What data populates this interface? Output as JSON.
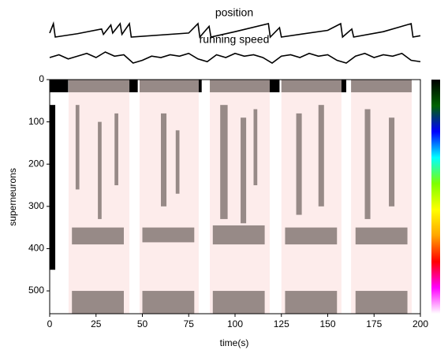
{
  "chart_data": [
    {
      "type": "line",
      "title": "position",
      "color": "#000000",
      "x": [
        0,
        2,
        3,
        15,
        28,
        29,
        33,
        34,
        38,
        39,
        43,
        44,
        75,
        80,
        81,
        86,
        87,
        100,
        118,
        119,
        124,
        125,
        150,
        157,
        158,
        163,
        164,
        180,
        195,
        196,
        200
      ],
      "values": [
        0.3,
        1,
        0,
        0.25,
        0.6,
        0.2,
        0.9,
        0.3,
        1,
        0.2,
        1,
        0,
        0.3,
        1,
        0,
        0.8,
        0,
        0.4,
        1,
        0,
        0.7,
        0,
        0.5,
        1,
        0,
        0.6,
        0,
        0.4,
        1,
        0,
        0.1
      ]
    },
    {
      "type": "line",
      "title": "running speed",
      "color": "#000000",
      "x": [
        0,
        5,
        10,
        15,
        20,
        25,
        30,
        35,
        40,
        45,
        50,
        55,
        60,
        65,
        70,
        75,
        80,
        85,
        90,
        95,
        100,
        105,
        110,
        115,
        120,
        125,
        130,
        135,
        140,
        145,
        150,
        155,
        160,
        165,
        170,
        175,
        180,
        185,
        190,
        195,
        200
      ],
      "values": [
        0.5,
        0.7,
        0.4,
        0.6,
        0.8,
        0.5,
        0.9,
        0.6,
        0.7,
        0.1,
        0.3,
        0.6,
        0.5,
        0.7,
        0.6,
        0.8,
        0.4,
        0.2,
        0.7,
        0.5,
        0.8,
        0.6,
        0.7,
        0.5,
        0.1,
        0.6,
        0.7,
        0.5,
        0.8,
        0.6,
        0.7,
        0.3,
        0.1,
        0.6,
        0.8,
        0.5,
        0.7,
        0.6,
        0.8,
        0.3,
        0.2
      ]
    },
    {
      "type": "heatmap",
      "xlabel": "time(s)",
      "ylabel": "superneurons",
      "xlim": [
        0,
        200
      ],
      "ylim": [
        0,
        554
      ],
      "invert_y": true,
      "xticks": [
        0,
        25,
        50,
        75,
        100,
        125,
        150,
        175,
        200
      ],
      "yticks": [
        0,
        100,
        200,
        300,
        400,
        500
      ],
      "band_color": "#fdeceb",
      "streak_color": "#978a87",
      "block_color": "#000000",
      "bands": [
        [
          10.2,
          43
        ],
        [
          48.5,
          80.4
        ],
        [
          86.4,
          118.7
        ],
        [
          125,
          157.4
        ],
        [
          162.6,
          195.3
        ]
      ],
      "streaks": [
        [
          10.2,
          43,
          0,
          30
        ],
        [
          48.5,
          80.4,
          0,
          30
        ],
        [
          86.4,
          118.7,
          0,
          30
        ],
        [
          125,
          157.4,
          0,
          30
        ],
        [
          162.6,
          195.3,
          0,
          30
        ],
        [
          14,
          16,
          60,
          260
        ],
        [
          26,
          28,
          100,
          330
        ],
        [
          35,
          37,
          80,
          250
        ],
        [
          60,
          63,
          80,
          300
        ],
        [
          68,
          70,
          120,
          270
        ],
        [
          92,
          96,
          60,
          330
        ],
        [
          103,
          106,
          90,
          340
        ],
        [
          110,
          112,
          70,
          250
        ],
        [
          133,
          136,
          80,
          320
        ],
        [
          145,
          148,
          60,
          300
        ],
        [
          170,
          173,
          70,
          330
        ],
        [
          183,
          186,
          90,
          300
        ],
        [
          12,
          40,
          350,
          390
        ],
        [
          50,
          78,
          350,
          385
        ],
        [
          88,
          116,
          345,
          390
        ],
        [
          127,
          155,
          350,
          390
        ],
        [
          165,
          193,
          350,
          390
        ],
        [
          12,
          40,
          500,
          554
        ],
        [
          50,
          78,
          500,
          554
        ],
        [
          88,
          116,
          500,
          554
        ],
        [
          127,
          155,
          500,
          554
        ],
        [
          165,
          193,
          500,
          554
        ]
      ],
      "blocks": [
        [
          0,
          10,
          0,
          30
        ],
        [
          43,
          47.5,
          0,
          30
        ],
        [
          80.4,
          82,
          0,
          30
        ],
        [
          118.7,
          124,
          0,
          30
        ],
        [
          157.4,
          160,
          0,
          30
        ],
        [
          0,
          3,
          60,
          450
        ]
      ],
      "colorbar": [
        "#000000",
        "#006400",
        "#0000ff",
        "#00ffff",
        "#7fff00",
        "#ffff00",
        "#ffa500",
        "#ff0000",
        "#ff00ff",
        "#ffffff"
      ]
    }
  ]
}
